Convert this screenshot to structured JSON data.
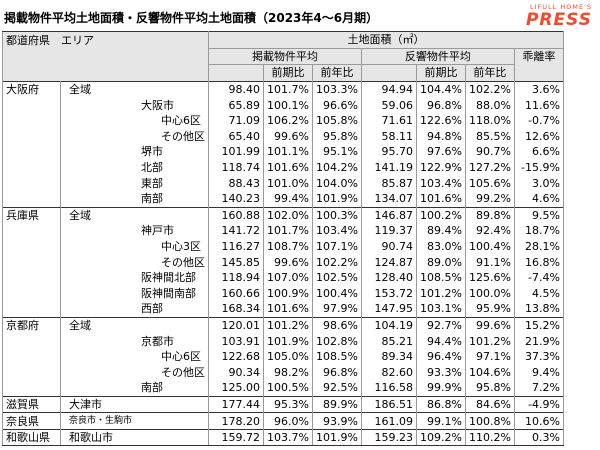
{
  "title": "掲載物件平均土地面積・反響物件平均土地面積（2023年4～6月期）",
  "brand": {
    "sub": "LIFULL HOME'S",
    "main": "PRESS",
    "color": "#ef4b2d"
  },
  "headers": {
    "region": "都道府県　エリア",
    "land_area": "土地面積（㎡）",
    "listed": "掲載物件平均",
    "response": "反響物件平均",
    "divergence": "乖離率",
    "qoq": "前期比",
    "yoy": "前年比"
  },
  "rows": [
    {
      "pref": "大阪府",
      "area": "全域",
      "level": 0,
      "listed": "98.40",
      "lqoq": "101.7%",
      "lyoy": "103.3%",
      "resp": "94.94",
      "rqoq": "104.4%",
      "ryoy": "102.2%",
      "div": "3.6%"
    },
    {
      "pref": "",
      "area": "大阪市",
      "level": 1,
      "listed": "65.89",
      "lqoq": "100.1%",
      "lyoy": "96.6%",
      "resp": "59.06",
      "rqoq": "96.8%",
      "ryoy": "88.0%",
      "div": "11.6%"
    },
    {
      "pref": "",
      "area": "中心6区",
      "level": 2,
      "listed": "71.09",
      "lqoq": "106.2%",
      "lyoy": "105.8%",
      "resp": "71.61",
      "rqoq": "122.6%",
      "ryoy": "118.0%",
      "div": "-0.7%"
    },
    {
      "pref": "",
      "area": "その他区",
      "level": 2,
      "listed": "65.40",
      "lqoq": "99.6%",
      "lyoy": "95.8%",
      "resp": "58.11",
      "rqoq": "94.8%",
      "ryoy": "85.5%",
      "div": "12.6%"
    },
    {
      "pref": "",
      "area": "堺市",
      "level": 3,
      "listed": "101.99",
      "lqoq": "101.1%",
      "lyoy": "95.1%",
      "resp": "95.70",
      "rqoq": "97.6%",
      "ryoy": "90.7%",
      "div": "6.6%"
    },
    {
      "pref": "",
      "area": "北部",
      "level": 3,
      "listed": "118.74",
      "lqoq": "101.6%",
      "lyoy": "104.2%",
      "resp": "141.19",
      "rqoq": "122.9%",
      "ryoy": "127.2%",
      "div": "-15.9%"
    },
    {
      "pref": "",
      "area": "東部",
      "level": 3,
      "listed": "88.43",
      "lqoq": "101.0%",
      "lyoy": "104.0%",
      "resp": "85.87",
      "rqoq": "103.4%",
      "ryoy": "105.6%",
      "div": "3.0%"
    },
    {
      "pref": "",
      "area": "南部",
      "level": 3,
      "listed": "140.23",
      "lqoq": "99.4%",
      "lyoy": "101.9%",
      "resp": "134.07",
      "rqoq": "101.6%",
      "ryoy": "99.2%",
      "div": "4.6%"
    },
    {
      "pref": "兵庫県",
      "area": "全域",
      "level": 0,
      "listed": "160.88",
      "lqoq": "102.0%",
      "lyoy": "100.3%",
      "resp": "146.87",
      "rqoq": "100.2%",
      "ryoy": "89.8%",
      "div": "9.5%"
    },
    {
      "pref": "",
      "area": "神戸市",
      "level": 1,
      "listed": "141.72",
      "lqoq": "101.7%",
      "lyoy": "103.4%",
      "resp": "119.37",
      "rqoq": "89.4%",
      "ryoy": "92.4%",
      "div": "18.7%"
    },
    {
      "pref": "",
      "area": "中心3区",
      "level": 2,
      "listed": "116.27",
      "lqoq": "108.7%",
      "lyoy": "107.1%",
      "resp": "90.74",
      "rqoq": "83.0%",
      "ryoy": "100.4%",
      "div": "28.1%"
    },
    {
      "pref": "",
      "area": "その他区",
      "level": 2,
      "listed": "145.85",
      "lqoq": "99.6%",
      "lyoy": "102.2%",
      "resp": "124.87",
      "rqoq": "89.0%",
      "ryoy": "91.1%",
      "div": "16.8%"
    },
    {
      "pref": "",
      "area": "阪神間北部",
      "level": 3,
      "listed": "118.94",
      "lqoq": "107.0%",
      "lyoy": "102.5%",
      "resp": "128.40",
      "rqoq": "108.5%",
      "ryoy": "125.6%",
      "div": "-7.4%"
    },
    {
      "pref": "",
      "area": "阪神間南部",
      "level": 3,
      "listed": "160.66",
      "lqoq": "100.9%",
      "lyoy": "100.4%",
      "resp": "153.72",
      "rqoq": "101.2%",
      "ryoy": "100.0%",
      "div": "4.5%"
    },
    {
      "pref": "",
      "area": "西部",
      "level": 3,
      "listed": "168.34",
      "lqoq": "101.6%",
      "lyoy": "97.9%",
      "resp": "147.95",
      "rqoq": "103.1%",
      "ryoy": "95.9%",
      "div": "13.8%"
    },
    {
      "pref": "京都府",
      "area": "全域",
      "level": 0,
      "listed": "120.01",
      "lqoq": "101.2%",
      "lyoy": "98.6%",
      "resp": "104.19",
      "rqoq": "92.7%",
      "ryoy": "99.6%",
      "div": "15.2%"
    },
    {
      "pref": "",
      "area": "京都市",
      "level": 1,
      "listed": "103.91",
      "lqoq": "101.9%",
      "lyoy": "102.8%",
      "resp": "85.21",
      "rqoq": "94.4%",
      "ryoy": "101.2%",
      "div": "21.9%"
    },
    {
      "pref": "",
      "area": "中心6区",
      "level": 2,
      "listed": "122.68",
      "lqoq": "105.0%",
      "lyoy": "108.5%",
      "resp": "89.34",
      "rqoq": "96.4%",
      "ryoy": "97.1%",
      "div": "37.3%"
    },
    {
      "pref": "",
      "area": "その他区",
      "level": 2,
      "listed": "90.34",
      "lqoq": "98.2%",
      "lyoy": "96.8%",
      "resp": "82.60",
      "rqoq": "93.3%",
      "ryoy": "104.6%",
      "div": "9.4%"
    },
    {
      "pref": "",
      "area": "南部",
      "level": 3,
      "listed": "125.00",
      "lqoq": "100.5%",
      "lyoy": "92.5%",
      "resp": "116.58",
      "rqoq": "99.9%",
      "ryoy": "95.8%",
      "div": "7.2%"
    },
    {
      "pref": "滋賀県",
      "area": "大津市",
      "level": 4,
      "listed": "177.44",
      "lqoq": "95.3%",
      "lyoy": "89.9%",
      "resp": "186.51",
      "rqoq": "86.8%",
      "ryoy": "84.6%",
      "div": "-4.9%"
    },
    {
      "pref": "奈良県",
      "area": "奈良市・生駒市",
      "level": 5,
      "listed": "178.20",
      "lqoq": "96.0%",
      "lyoy": "93.9%",
      "resp": "161.09",
      "rqoq": "99.1%",
      "ryoy": "100.8%",
      "div": "10.6%"
    },
    {
      "pref": "和歌山県",
      "area": "和歌山市",
      "level": 4,
      "listed": "159.72",
      "lqoq": "103.7%",
      "lyoy": "101.9%",
      "resp": "159.23",
      "rqoq": "109.2%",
      "ryoy": "110.2%",
      "div": "0.3%"
    }
  ]
}
